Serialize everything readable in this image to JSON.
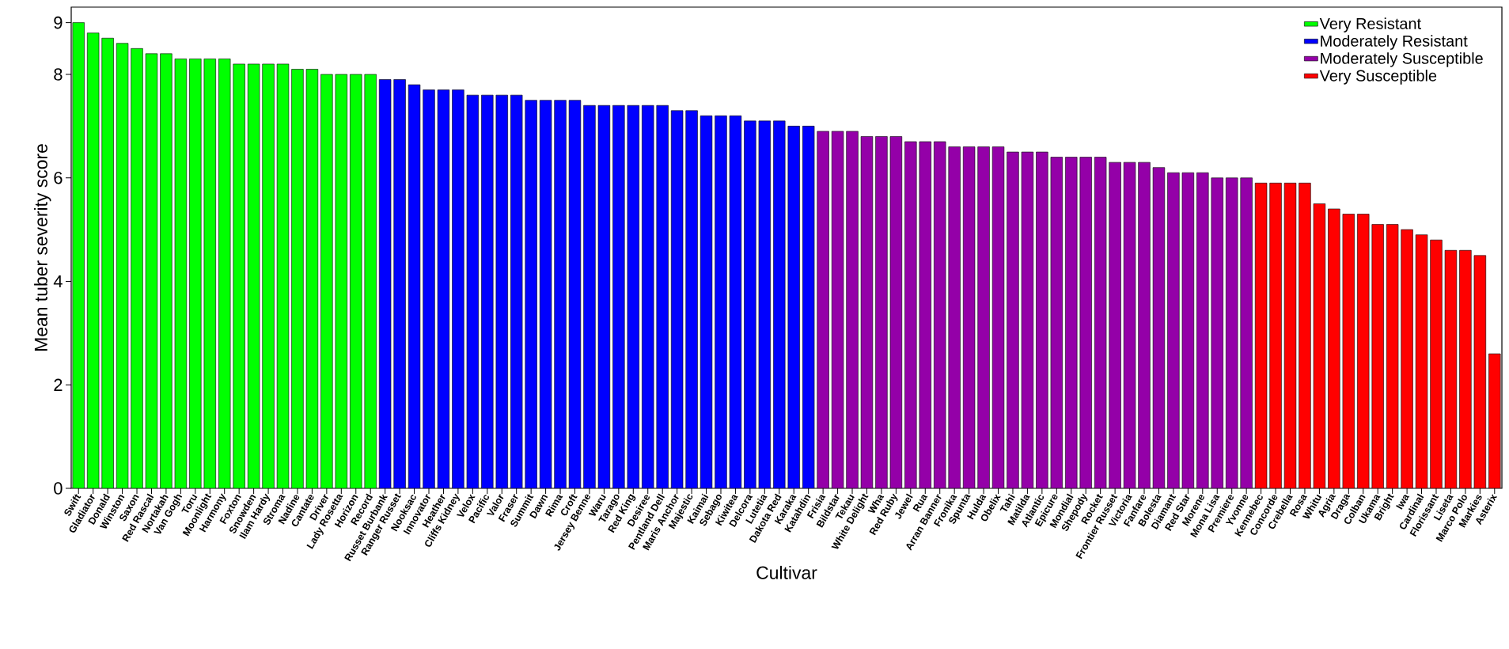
{
  "chart_data": {
    "type": "bar",
    "xlabel": "Cultivar",
    "ylabel": "Mean tuber severity score",
    "categories": [
      "Swift",
      "Gladiator",
      "Donald",
      "Winston",
      "Saxon",
      "Red Rascal",
      "Nortakah",
      "Van Gogh",
      "Toru",
      "Moonlight",
      "Harmony",
      "Foxton",
      "Snowden",
      "Ilam Hardy",
      "Stroma",
      "Nadine",
      "Cantate",
      "Driver",
      "Lady Rosetta",
      "Horizon",
      "Record",
      "Russet Burbank",
      "Ranger Russet",
      "Nooksac",
      "Innovator",
      "Heather",
      "Cliffs Kidney",
      "Velox",
      "Pacific",
      "Valor",
      "Fraser",
      "Summit",
      "Dawn",
      "Rima",
      "Croft",
      "Jersey Benne",
      "Waru",
      "Tarago",
      "Red King",
      "Desiree",
      "Pentland Dell",
      "Maris Anchor",
      "Majestic",
      "Kaimai",
      "Sebago",
      "Kiwitea",
      "Delcora",
      "Lutetia",
      "Dakota Red",
      "Karaka",
      "Katahdin",
      "Frisia",
      "Bildstar",
      "Tekau",
      "White Delight",
      "Wha",
      "Red Ruby",
      "Jewel",
      "Rua",
      "Arran Banner",
      "Fronika",
      "Spunta",
      "Hulda",
      "Obelix",
      "Tahi",
      "Matilda",
      "Atlantic",
      "Epicure",
      "Mondial",
      "Shepody",
      "Rocket",
      "Frontier Russet",
      "Victoria",
      "Fanfare",
      "Bolesta",
      "Diamant",
      "Red Star",
      "Morene",
      "Mona Lisa",
      "Premiere",
      "Yvonne",
      "Kennebec",
      "Concorde",
      "Crebella",
      "Rosa",
      "Whitu",
      "Agria",
      "Draga",
      "Colban",
      "Ukama",
      "Bright",
      "Iwa",
      "Cardinal",
      "Florissant",
      "Liseta",
      "Marco Polo",
      "Markies",
      "Asterix"
    ],
    "series": [
      {
        "name": "Very Resistant",
        "color": "#00ff00",
        "values": [
          9,
          8.8,
          8.7,
          8.6,
          8.5,
          8.4,
          8.4,
          8.3,
          8.3,
          8.3,
          8.3,
          8.2,
          8.2,
          8.2,
          8.2,
          8.1,
          8.1,
          8.0,
          8.0,
          8.0,
          8.0,
          null,
          null,
          null,
          null,
          null,
          null,
          null,
          null,
          null,
          null,
          null,
          null,
          null,
          null,
          null,
          null,
          null,
          null,
          null,
          null,
          null,
          null,
          null,
          null,
          null,
          null,
          null,
          null,
          null,
          null,
          null,
          null,
          null,
          null,
          null,
          null,
          null,
          null,
          null,
          null,
          null,
          null,
          null,
          null,
          null,
          null,
          null,
          null,
          null,
          null,
          null,
          null,
          null,
          null,
          null,
          null,
          null,
          null,
          null,
          null,
          null,
          null,
          null,
          null,
          null,
          null,
          null,
          null,
          null,
          null,
          null,
          null,
          null,
          null,
          null,
          null,
          null
        ]
      },
      {
        "name": "Moderately Resistant",
        "color": "#0000ff",
        "values": [
          null,
          null,
          null,
          null,
          null,
          null,
          null,
          null,
          null,
          null,
          null,
          null,
          null,
          null,
          null,
          null,
          null,
          null,
          null,
          null,
          null,
          7.9,
          7.9,
          7.8,
          7.7,
          7.7,
          7.7,
          7.6,
          7.6,
          7.6,
          7.6,
          7.5,
          7.5,
          7.5,
          7.5,
          7.4,
          7.4,
          7.4,
          7.4,
          7.4,
          7.4,
          7.3,
          7.3,
          7.2,
          7.2,
          7.2,
          7.1,
          7.1,
          7.1,
          7.0,
          7.0,
          null,
          null,
          null,
          null,
          null,
          null,
          null,
          null,
          null,
          null,
          null,
          null,
          null,
          null,
          null,
          null,
          null,
          null,
          null,
          null,
          null,
          null,
          null,
          null,
          null,
          null,
          null,
          null,
          null,
          null,
          null,
          null,
          null,
          null,
          null,
          null,
          null,
          null,
          null,
          null,
          null,
          null,
          null,
          null,
          null,
          null,
          null
        ]
      },
      {
        "name": "Moderately Susceptible",
        "color": "#9400a8",
        "values": [
          null,
          null,
          null,
          null,
          null,
          null,
          null,
          null,
          null,
          null,
          null,
          null,
          null,
          null,
          null,
          null,
          null,
          null,
          null,
          null,
          null,
          null,
          null,
          null,
          null,
          null,
          null,
          null,
          null,
          null,
          null,
          null,
          null,
          null,
          null,
          null,
          null,
          null,
          null,
          null,
          null,
          null,
          null,
          null,
          null,
          null,
          null,
          null,
          null,
          null,
          null,
          6.9,
          6.9,
          6.9,
          6.8,
          6.8,
          6.8,
          6.7,
          6.7,
          6.7,
          6.6,
          6.6,
          6.6,
          6.6,
          6.5,
          6.5,
          6.5,
          6.4,
          6.4,
          6.4,
          6.4,
          6.3,
          6.3,
          6.3,
          6.2,
          6.1,
          6.1,
          6.1,
          6.0,
          6.0,
          6.0,
          null,
          null,
          null,
          null,
          null,
          null,
          null,
          null,
          null,
          null,
          null,
          null,
          null,
          null,
          null,
          null,
          null
        ]
      },
      {
        "name": "Very Susceptible",
        "color": "#ff0000",
        "values": [
          null,
          null,
          null,
          null,
          null,
          null,
          null,
          null,
          null,
          null,
          null,
          null,
          null,
          null,
          null,
          null,
          null,
          null,
          null,
          null,
          null,
          null,
          null,
          null,
          null,
          null,
          null,
          null,
          null,
          null,
          null,
          null,
          null,
          null,
          null,
          null,
          null,
          null,
          null,
          null,
          null,
          null,
          null,
          null,
          null,
          null,
          null,
          null,
          null,
          null,
          null,
          null,
          null,
          null,
          null,
          null,
          null,
          null,
          null,
          null,
          null,
          null,
          null,
          null,
          null,
          null,
          null,
          null,
          null,
          null,
          null,
          null,
          null,
          null,
          null,
          null,
          null,
          null,
          null,
          null,
          null,
          5.9,
          5.9,
          5.9,
          5.9,
          5.5,
          5.4,
          5.3,
          5.3,
          5.1,
          5.1,
          5.0,
          4.9,
          4.8,
          4.6,
          4.6,
          4.5,
          2.6
        ]
      }
    ],
    "ylim": [
      0,
      9.3
    ],
    "yticks": [
      0,
      2,
      4,
      6,
      8,
      9
    ],
    "legend": "top right"
  }
}
